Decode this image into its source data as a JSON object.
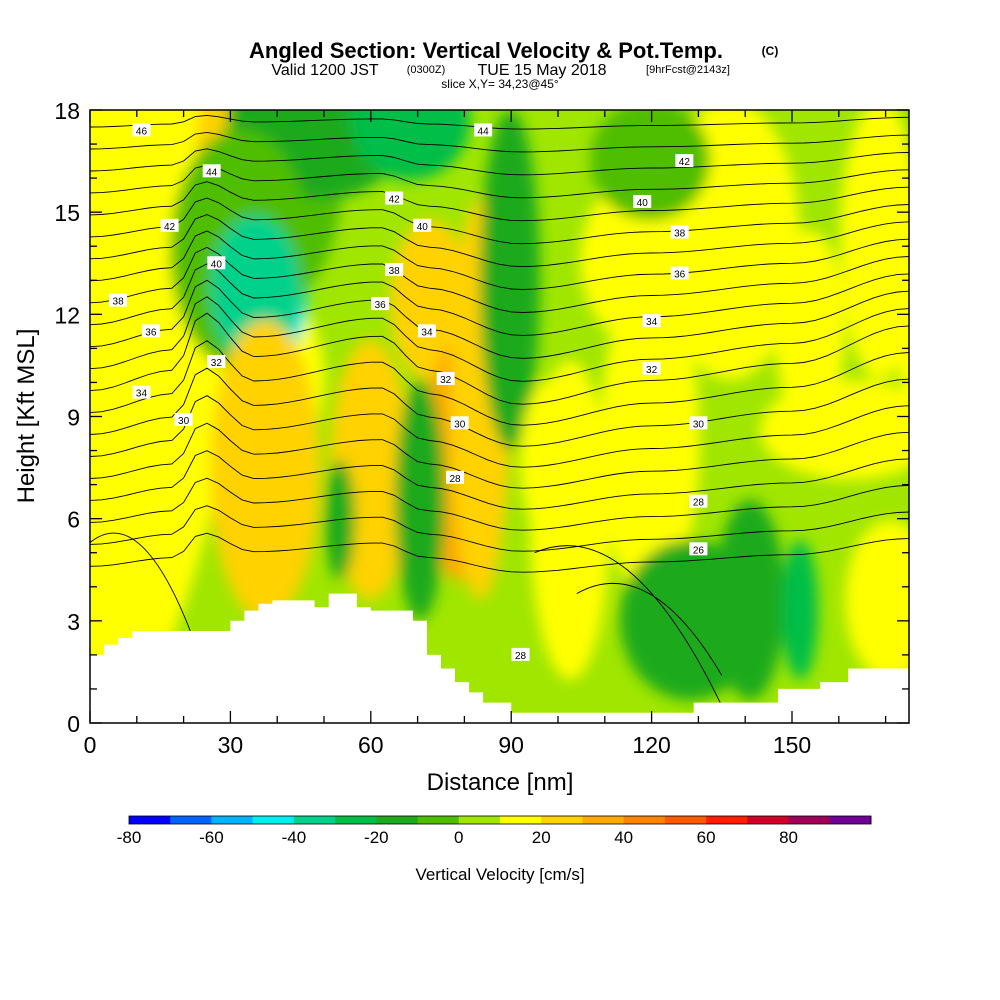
{
  "header": {
    "title": "Angled Section: Vertical Velocity & Pot.Temp.",
    "title_sup": "(C)",
    "valid_prefix": "Valid 1200 JST",
    "valid_utc": "(0300Z)",
    "valid_date": "TUE 15 May 2018",
    "forecast": "[9hrFcst@2143z]",
    "slice": "slice X,Y= 34,23@45°"
  },
  "chart_data": {
    "type": "heatmap",
    "title": "Angled Section: Vertical Velocity & Pot.Temp.",
    "xlabel": "Distance [nm]",
    "ylabel": "Height [Kft MSL]",
    "xlim": [
      0,
      175
    ],
    "ylim": [
      0,
      18
    ],
    "xticks": [
      0,
      30,
      60,
      90,
      120,
      150
    ],
    "yticks": [
      0,
      3,
      6,
      9,
      12,
      15,
      18
    ],
    "colorbar": {
      "label": "Vertical Velocity [cm/s]",
      "levels": [
        -80,
        -70,
        -60,
        -50,
        -40,
        -30,
        -20,
        -10,
        0,
        10,
        20,
        30,
        40,
        50,
        60,
        70,
        80,
        90
      ],
      "tick_labels": [
        -80,
        -60,
        -40,
        -20,
        0,
        20,
        40,
        60,
        80
      ],
      "colors": [
        "#0000ff",
        "#0064ff",
        "#00b4ff",
        "#00f0f0",
        "#00d28c",
        "#00be46",
        "#1eaa1e",
        "#50be00",
        "#a0e600",
        "#ffff00",
        "#ffd200",
        "#ffaa00",
        "#ff8200",
        "#ff5a00",
        "#ff1e00",
        "#d20028",
        "#a0005a",
        "#6e0096"
      ]
    },
    "terrain": {
      "x": [
        0,
        3,
        3,
        6,
        6,
        9,
        9,
        12,
        12,
        15,
        15,
        18,
        18,
        21,
        21,
        24,
        24,
        27,
        27,
        30,
        30,
        33,
        33,
        36,
        36,
        39,
        39,
        45,
        45,
        48,
        48,
        51,
        51,
        54,
        54,
        57,
        57,
        60,
        60,
        63,
        63,
        66,
        66,
        69,
        69,
        72,
        72,
        75,
        75,
        78,
        78,
        81,
        81,
        84,
        84,
        87,
        87,
        90,
        90,
        93,
        93,
        96,
        96,
        102,
        102,
        105,
        105,
        108,
        108,
        111,
        111,
        114,
        114,
        117,
        117,
        120,
        120,
        123,
        123,
        126,
        126,
        129,
        129,
        132,
        132,
        135,
        135,
        138,
        138,
        141,
        141,
        144,
        144,
        147,
        147,
        150,
        150,
        153,
        153,
        156,
        156,
        159,
        159,
        162,
        162,
        165,
        165,
        168,
        168,
        171,
        171,
        175
      ],
      "y": [
        2.0,
        2.0,
        2.3,
        2.3,
        2.5,
        2.5,
        2.7,
        2.7,
        2.7,
        2.7,
        2.7,
        2.7,
        2.7,
        2.7,
        2.7,
        2.7,
        2.7,
        2.7,
        2.7,
        2.7,
        3.0,
        3.0,
        3.3,
        3.3,
        3.5,
        3.5,
        3.6,
        3.6,
        3.6,
        3.6,
        3.4,
        3.4,
        3.8,
        3.8,
        3.8,
        3.8,
        3.4,
        3.4,
        3.3,
        3.3,
        3.3,
        3.3,
        3.3,
        3.3,
        3.0,
        3.0,
        2.0,
        2.0,
        1.6,
        1.6,
        1.2,
        1.2,
        0.9,
        0.9,
        0.6,
        0.6,
        0.6,
        0.6,
        0.3,
        0.3,
        0.3,
        0.3,
        0.3,
        0.3,
        0.3,
        0.3,
        0.3,
        0.3,
        0.3,
        0.3,
        0.3,
        0.3,
        0.3,
        0.3,
        0.3,
        0.3,
        0.3,
        0.3,
        0.3,
        0.3,
        0.3,
        0.3,
        0.6,
        0.6,
        0.6,
        0.6,
        0.6,
        0.6,
        0.6,
        0.6,
        0.6,
        0.6,
        0.6,
        0.6,
        1.0,
        1.0,
        1.0,
        1.0,
        1.0,
        1.0,
        1.2,
        1.2,
        1.2,
        1.2,
        1.6,
        1.6,
        1.6,
        1.6,
        1.6,
        1.6,
        1.6,
        1.6
      ]
    },
    "isotherms": {
      "unit": "C",
      "levels": [
        26,
        27,
        28,
        29,
        30,
        31,
        32,
        33,
        34,
        35,
        36,
        37,
        38,
        39,
        40,
        41,
        42,
        43,
        44,
        45,
        46
      ],
      "label_positions": [
        {
          "text": "46",
          "x": 11,
          "y": 17.4
        },
        {
          "text": "44",
          "x": 26,
          "y": 16.2
        },
        {
          "text": "42",
          "x": 17,
          "y": 14.6
        },
        {
          "text": "40",
          "x": 27,
          "y": 13.5
        },
        {
          "text": "38",
          "x": 6,
          "y": 12.4
        },
        {
          "text": "36",
          "x": 13,
          "y": 11.5
        },
        {
          "text": "34",
          "x": 11,
          "y": 9.7
        },
        {
          "text": "32",
          "x": 27,
          "y": 10.6
        },
        {
          "text": "30",
          "x": 20,
          "y": 8.9
        },
        {
          "text": "44",
          "x": 84,
          "y": 17.4
        },
        {
          "text": "42",
          "x": 65,
          "y": 15.4
        },
        {
          "text": "40",
          "x": 71,
          "y": 14.6
        },
        {
          "text": "38",
          "x": 65,
          "y": 13.3
        },
        {
          "text": "36",
          "x": 62,
          "y": 12.3
        },
        {
          "text": "34",
          "x": 72,
          "y": 11.5
        },
        {
          "text": "32",
          "x": 76,
          "y": 10.1
        },
        {
          "text": "30",
          "x": 79,
          "y": 8.8
        },
        {
          "text": "28",
          "x": 78,
          "y": 7.2
        },
        {
          "text": "42",
          "x": 127,
          "y": 16.5
        },
        {
          "text": "40",
          "x": 118,
          "y": 15.3
        },
        {
          "text": "38",
          "x": 126,
          "y": 14.4
        },
        {
          "text": "36",
          "x": 126,
          "y": 13.2
        },
        {
          "text": "34",
          "x": 120,
          "y": 11.8
        },
        {
          "text": "32",
          "x": 120,
          "y": 10.4
        },
        {
          "text": "30",
          "x": 130,
          "y": 8.8
        },
        {
          "text": "28",
          "x": 130,
          "y": 6.5
        },
        {
          "text": "26",
          "x": 130,
          "y": 5.1
        },
        {
          "text": "28",
          "x": 92,
          "y": 2.0
        }
      ]
    }
  }
}
